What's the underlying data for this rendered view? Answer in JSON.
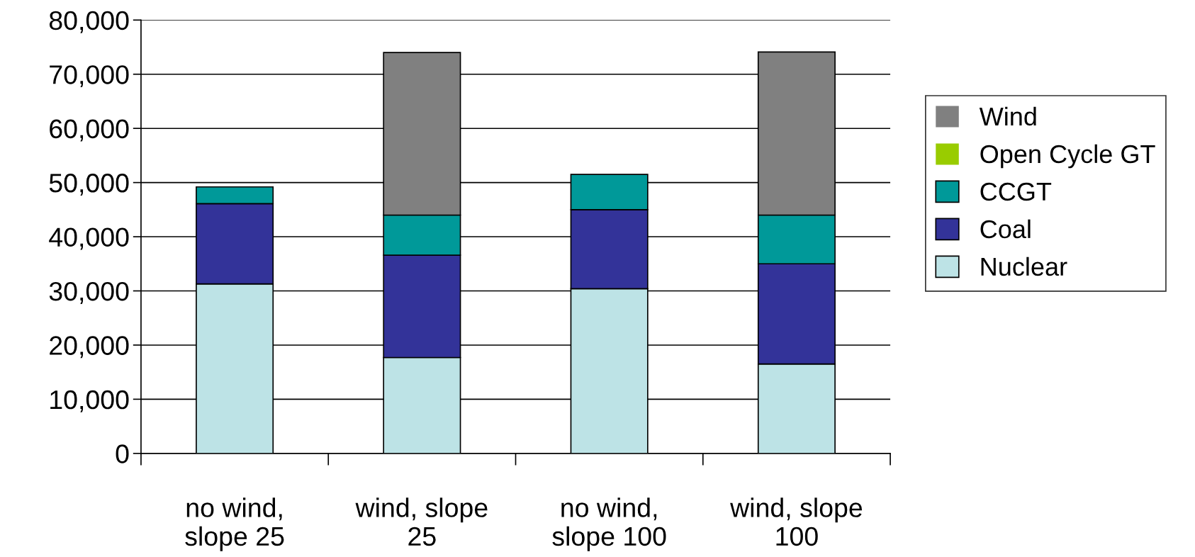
{
  "chart_data": {
    "type": "bar",
    "stacked": true,
    "categories": [
      "no wind,\nslope 25",
      "wind, slope\n25",
      "no wind,\nslope 100",
      "wind, slope\n100"
    ],
    "series": [
      {
        "name": "Nuclear",
        "color": "#bde3e6",
        "values": [
          31300,
          17700,
          30400,
          16500
        ]
      },
      {
        "name": "Coal",
        "color": "#333399",
        "values": [
          14800,
          18900,
          14600,
          18500
        ]
      },
      {
        "name": "CCGT",
        "color": "#009999",
        "values": [
          3100,
          7400,
          6500,
          9000
        ]
      },
      {
        "name": "Open Cycle GT",
        "color": "#99cc00",
        "values": [
          0,
          0,
          0,
          0
        ]
      },
      {
        "name": "Wind",
        "color": "#808080",
        "values": [
          0,
          30000,
          0,
          30100
        ]
      }
    ],
    "ylim": [
      0,
      80000
    ],
    "yticks": [
      {
        "value": 0,
        "label": "0"
      },
      {
        "value": 10000,
        "label": "10,000"
      },
      {
        "value": 20000,
        "label": "20,000"
      },
      {
        "value": 30000,
        "label": "30,000"
      },
      {
        "value": 40000,
        "label": "40,000"
      },
      {
        "value": 50000,
        "label": "50,000"
      },
      {
        "value": 60000,
        "label": "60,000"
      },
      {
        "value": 70000,
        "label": "70,000"
      },
      {
        "value": 80000,
        "label": "80,000"
      }
    ],
    "grid": "y",
    "legend": "right"
  }
}
